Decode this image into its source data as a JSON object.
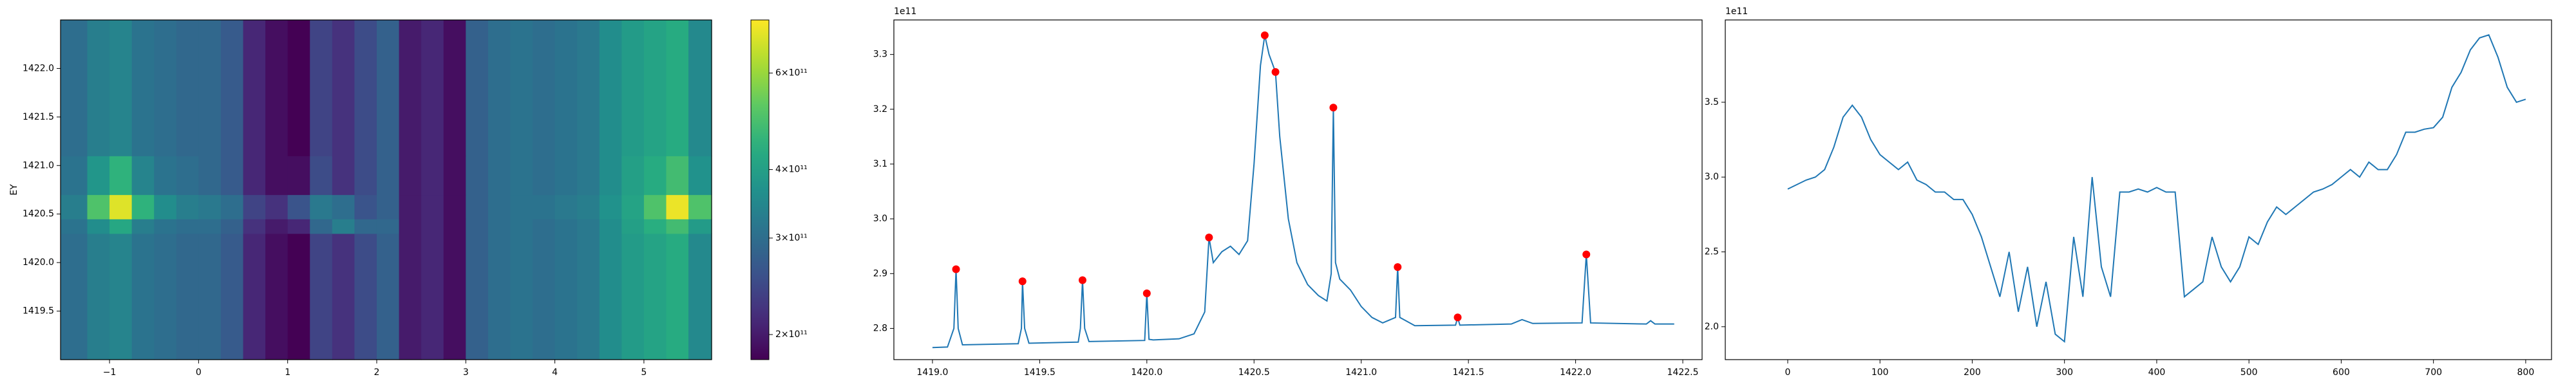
{
  "chart_data": [
    {
      "type": "heatmap",
      "ylabel": "EY",
      "x_edges": [
        -1.55,
        -1.25,
        -1.0,
        -0.75,
        -0.5,
        -0.25,
        0,
        0.25,
        0.5,
        0.75,
        1.0,
        1.25,
        1.5,
        1.75,
        2.0,
        2.25,
        2.5,
        2.75,
        3.0,
        3.25,
        3.5,
        3.75,
        4.0,
        4.25,
        4.5,
        4.75,
        5.0,
        5.25,
        5.5,
        5.76
      ],
      "y_edges": [
        1419.0,
        1420.3,
        1420.45,
        1420.7,
        1421.1,
        1422.5
      ],
      "z": [
        [
          300000000000.0,
          330000000000.0,
          340000000000.0,
          310000000000.0,
          300000000000.0,
          290000000000.0,
          290000000000.0,
          270000000000.0,
          210000000000.0,
          190000000000.0,
          180000000000.0,
          240000000000.0,
          220000000000.0,
          250000000000.0,
          280000000000.0,
          200000000000.0,
          210000000000.0,
          190000000000.0,
          280000000000.0,
          300000000000.0,
          310000000000.0,
          300000000000.0,
          310000000000.0,
          320000000000.0,
          360000000000.0,
          390000000000.0,
          410000000000.0,
          430000000000.0,
          350000000000.0
        ],
        [
          310000000000.0,
          360000000000.0,
          420000000000.0,
          330000000000.0,
          310000000000.0,
          300000000000.0,
          300000000000.0,
          280000000000.0,
          220000000000.0,
          200000000000.0,
          210000000000.0,
          290000000000.0,
          330000000000.0,
          290000000000.0,
          290000000000.0,
          200000000000.0,
          210000000000.0,
          190000000000.0,
          280000000000.0,
          300000000000.0,
          310000000000.0,
          300000000000.0,
          310000000000.0,
          320000000000.0,
          360000000000.0,
          400000000000.0,
          440000000000.0,
          480000000000.0,
          390000000000.0
        ],
        [
          330000000000.0,
          500000000000.0,
          700000000000.0,
          450000000000.0,
          360000000000.0,
          330000000000.0,
          320000000000.0,
          300000000000.0,
          240000000000.0,
          220000000000.0,
          260000000000.0,
          320000000000.0,
          300000000000.0,
          260000000000.0,
          280000000000.0,
          200000000000.0,
          210000000000.0,
          190000000000.0,
          280000000000.0,
          300000000000.0,
          310000000000.0,
          310000000000.0,
          320000000000.0,
          330000000000.0,
          370000000000.0,
          410000000000.0,
          500000000000.0,
          720000000000.0,
          500000000000.0
        ],
        [
          310000000000.0,
          380000000000.0,
          450000000000.0,
          340000000000.0,
          310000000000.0,
          300000000000.0,
          290000000000.0,
          270000000000.0,
          210000000000.0,
          190000000000.0,
          190000000000.0,
          250000000000.0,
          220000000000.0,
          250000000000.0,
          280000000000.0,
          200000000000.0,
          210000000000.0,
          190000000000.0,
          280000000000.0,
          300000000000.0,
          310000000000.0,
          300000000000.0,
          310000000000.0,
          320000000000.0,
          360000000000.0,
          400000000000.0,
          430000000000.0,
          480000000000.0,
          370000000000.0
        ],
        [
          300000000000.0,
          330000000000.0,
          340000000000.0,
          310000000000.0,
          300000000000.0,
          290000000000.0,
          290000000000.0,
          270000000000.0,
          210000000000.0,
          190000000000.0,
          180000000000.0,
          240000000000.0,
          220000000000.0,
          250000000000.0,
          280000000000.0,
          200000000000.0,
          210000000000.0,
          190000000000.0,
          280000000000.0,
          300000000000.0,
          310000000000.0,
          300000000000.0,
          310000000000.0,
          320000000000.0,
          360000000000.0,
          390000000000.0,
          410000000000.0,
          430000000000.0,
          350000000000.0
        ]
      ],
      "xlim": [
        -1.55,
        5.76
      ],
      "ylim": [
        1419.0,
        1422.5
      ],
      "xticks": [
        {
          "value": -1,
          "label": "−1"
        },
        0,
        1,
        2,
        3,
        4,
        5
      ],
      "yticks": [
        1419.5,
        {
          "value": 1420,
          "label": "1420.0"
        },
        1420.5,
        {
          "value": 1421,
          "label": "1421.0"
        },
        1421.5,
        {
          "value": 1422,
          "label": "1422.0"
        }
      ],
      "colorbar": {
        "colormap": "viridis",
        "scale": "log",
        "clim": [
          180000000000.0,
          750000000000.0
        ],
        "ticks": [
          {
            "value": 200000000000.0,
            "label": "2×10¹¹"
          },
          {
            "value": 300000000000.0,
            "label": "3×10¹¹"
          },
          {
            "value": 400000000000.0,
            "label": "4×10¹¹"
          },
          {
            "value": 600000000000.0,
            "label": "6×10¹¹"
          }
        ]
      }
    },
    {
      "type": "line",
      "offset_label": "1e11",
      "series": [
        {
          "mode": "lines",
          "color": "#1f77b4",
          "x": [
            1419.0,
            1419.07,
            1419.1,
            1419.11,
            1419.12,
            1419.14,
            1419.4,
            1419.415,
            1419.42,
            1419.43,
            1419.45,
            1419.68,
            1419.69,
            1419.7,
            1419.71,
            1419.73,
            1419.99,
            1420.0,
            1420.01,
            1420.03,
            1420.15,
            1420.22,
            1420.27,
            1420.29,
            1420.31,
            1420.35,
            1420.39,
            1420.43,
            1420.47,
            1420.5,
            1420.53,
            1420.55,
            1420.57,
            1420.6,
            1420.62,
            1420.66,
            1420.7,
            1420.75,
            1420.8,
            1420.84,
            1420.86,
            1420.87,
            1420.88,
            1420.9,
            1420.95,
            1421.0,
            1421.05,
            1421.1,
            1421.16,
            1421.17,
            1421.18,
            1421.25,
            1421.44,
            1421.45,
            1421.46,
            1421.7,
            1421.75,
            1421.8,
            1422.03,
            1422.05,
            1422.07,
            1422.33,
            1422.35,
            1422.37,
            1422.46
          ],
          "values": [
            2.765,
            2.766,
            2.8,
            2.908,
            2.8,
            2.77,
            2.772,
            2.8,
            2.886,
            2.8,
            2.773,
            2.775,
            2.8,
            2.888,
            2.8,
            2.776,
            2.778,
            2.864,
            2.78,
            2.779,
            2.781,
            2.79,
            2.83,
            2.966,
            2.92,
            2.94,
            2.95,
            2.935,
            2.96,
            3.1,
            3.28,
            3.335,
            3.3,
            3.268,
            3.15,
            3.0,
            2.92,
            2.88,
            2.86,
            2.85,
            2.9,
            3.203,
            2.92,
            2.89,
            2.87,
            2.84,
            2.82,
            2.81,
            2.82,
            2.912,
            2.82,
            2.805,
            2.806,
            2.82,
            2.806,
            2.808,
            2.816,
            2.809,
            2.81,
            2.935,
            2.81,
            2.808,
            2.814,
            2.808,
            2.808
          ]
        },
        {
          "mode": "markers",
          "color": "red",
          "x": [
            1419.11,
            1419.42,
            1419.7,
            1420.0,
            1420.29,
            1420.55,
            1420.6,
            1420.87,
            1421.17,
            1421.45,
            1422.05
          ],
          "values": [
            2.908,
            2.886,
            2.888,
            2.864,
            2.966,
            3.335,
            3.268,
            3.203,
            2.912,
            2.82,
            2.935
          ]
        }
      ],
      "xlim": [
        1418.82,
        1422.59
      ],
      "ylim": [
        2.743,
        3.363
      ],
      "xticks": [
        {
          "value": 1419,
          "label": "1419.0"
        },
        1419.5,
        {
          "value": 1420,
          "label": "1420.0"
        },
        1420.5,
        {
          "value": 1421,
          "label": "1421.0"
        },
        1421.5,
        {
          "value": 1422,
          "label": "1422.0"
        },
        1422.5
      ],
      "yticks": [
        2.8,
        2.9,
        {
          "value": 3,
          "label": "3.0"
        },
        3.1,
        3.2,
        3.3
      ]
    },
    {
      "type": "line",
      "offset_label": "1e11",
      "series": [
        {
          "mode": "lines",
          "color": "#1f77b4",
          "x": [
            0,
            10,
            20,
            30,
            40,
            50,
            60,
            70,
            80,
            90,
            100,
            110,
            120,
            130,
            140,
            150,
            160,
            170,
            180,
            190,
            200,
            210,
            220,
            230,
            240,
            250,
            260,
            270,
            280,
            290,
            300,
            310,
            320,
            330,
            340,
            350,
            360,
            370,
            380,
            390,
            400,
            410,
            420,
            430,
            440,
            450,
            460,
            470,
            480,
            490,
            500,
            510,
            520,
            530,
            540,
            550,
            560,
            570,
            580,
            590,
            600,
            610,
            620,
            630,
            640,
            650,
            660,
            670,
            680,
            690,
            700,
            710,
            720,
            730,
            740,
            750,
            760,
            770,
            780,
            790,
            800
          ],
          "values": [
            2.92,
            2.95,
            2.98,
            3.0,
            3.05,
            3.2,
            3.4,
            3.48,
            3.4,
            3.25,
            3.15,
            3.1,
            3.05,
            3.1,
            2.98,
            2.95,
            2.9,
            2.9,
            2.85,
            2.85,
            2.75,
            2.6,
            2.4,
            2.2,
            2.5,
            2.1,
            2.4,
            2.0,
            2.3,
            1.95,
            1.9,
            2.6,
            2.2,
            3.0,
            2.4,
            2.2,
            2.9,
            2.9,
            2.92,
            2.9,
            2.93,
            2.9,
            2.9,
            2.2,
            2.25,
            2.3,
            2.6,
            2.4,
            2.3,
            2.4,
            2.6,
            2.55,
            2.7,
            2.8,
            2.75,
            2.8,
            2.85,
            2.9,
            2.92,
            2.95,
            3.0,
            3.05,
            3.0,
            3.1,
            3.05,
            3.05,
            3.15,
            3.3,
            3.3,
            3.32,
            3.33,
            3.4,
            3.6,
            3.7,
            3.85,
            3.93,
            3.95,
            3.8,
            3.6,
            3.5,
            3.52
          ]
        }
      ],
      "xlim": [
        -67.7,
        828
      ],
      "ylim": [
        1.78,
        4.05
      ],
      "xticks": [
        0,
        100,
        200,
        300,
        400,
        500,
        600,
        700,
        800
      ],
      "yticks": [
        {
          "value": 2,
          "label": "2.0"
        },
        2.5,
        {
          "value": 3,
          "label": "3.0"
        },
        3.5
      ]
    }
  ]
}
